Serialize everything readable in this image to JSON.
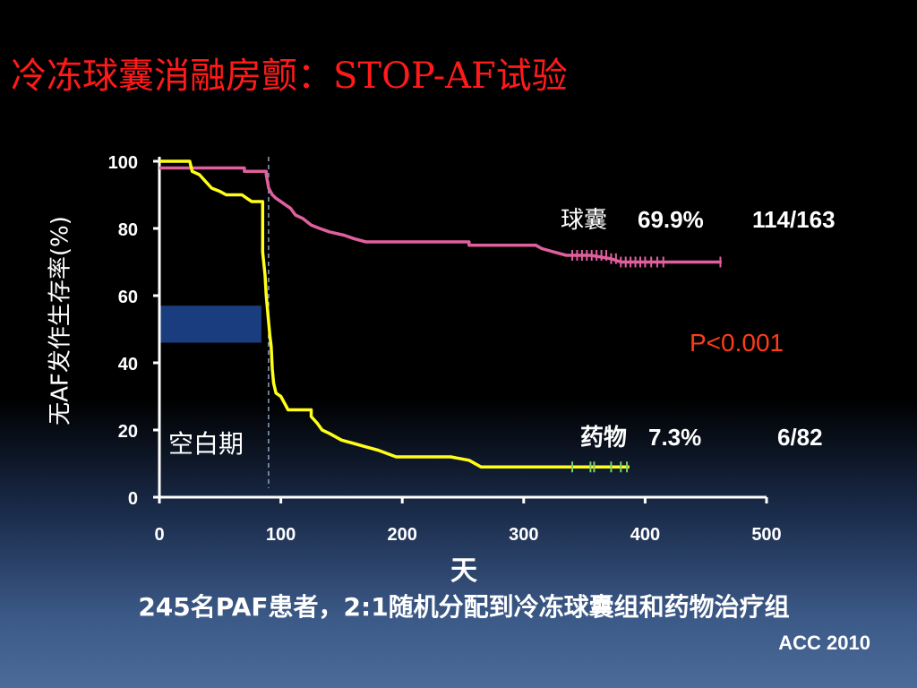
{
  "title": "冷冻球囊消融房颤：STOP-AF试验",
  "footnote": "245名PAF患者，2:1随机分配到冷冻球囊组和药物治疗组",
  "source": "ACC 2010",
  "colors": {
    "balloon": "#e0609e",
    "drug": "#ffff1a",
    "pvalue": "#ff3b1a",
    "blanking_fill": "#1a3d80",
    "axis": "#ffffff",
    "title": "#ff1a1a"
  },
  "chart_data": {
    "type": "line",
    "title": "",
    "xlabel": "天",
    "ylabel": "无AF发作生存率(%)",
    "xlim": [
      0,
      500
    ],
    "ylim": [
      0,
      100
    ],
    "x_ticks": [
      0,
      100,
      200,
      300,
      400,
      500
    ],
    "y_ticks": [
      0,
      20,
      40,
      60,
      80,
      100
    ],
    "grid": false,
    "blanking_period": {
      "label": "空白期",
      "x_end": 84,
      "y_range": [
        46,
        57
      ]
    },
    "p_value": "P<0.001",
    "series": [
      {
        "name": "球囊",
        "key": "balloon",
        "final_pct": "69.9%",
        "count": "114/163",
        "points": [
          [
            0,
            98
          ],
          [
            70,
            98
          ],
          [
            70,
            97
          ],
          [
            88,
            97
          ],
          [
            88,
            96
          ],
          [
            90,
            92
          ],
          [
            93,
            90
          ],
          [
            96,
            89
          ],
          [
            100,
            88
          ],
          [
            104,
            87
          ],
          [
            108,
            86
          ],
          [
            112,
            84
          ],
          [
            118,
            83
          ],
          [
            125,
            81
          ],
          [
            132,
            80
          ],
          [
            140,
            79
          ],
          [
            152,
            78
          ],
          [
            160,
            77
          ],
          [
            170,
            76
          ],
          [
            255,
            76
          ],
          [
            255,
            75
          ],
          [
            310,
            75
          ],
          [
            315,
            74
          ],
          [
            325,
            73
          ],
          [
            335,
            72
          ],
          [
            355,
            72
          ],
          [
            372,
            71
          ],
          [
            380,
            70
          ],
          [
            463,
            70
          ]
        ],
        "censor_x": [
          340,
          344,
          348,
          352,
          356,
          360,
          364,
          368,
          372,
          376,
          380,
          384,
          388,
          392,
          396,
          400,
          405,
          410,
          415,
          462
        ]
      },
      {
        "name": "药物",
        "key": "drug",
        "final_pct": "7.3%",
        "count": "6/82",
        "points": [
          [
            0,
            100
          ],
          [
            25,
            100
          ],
          [
            27,
            97
          ],
          [
            33,
            96
          ],
          [
            38,
            94
          ],
          [
            43,
            92
          ],
          [
            50,
            91
          ],
          [
            55,
            90
          ],
          [
            68,
            90
          ],
          [
            72,
            89
          ],
          [
            76,
            88
          ],
          [
            85,
            88
          ],
          [
            85,
            73
          ],
          [
            87,
            66
          ],
          [
            88,
            60
          ],
          [
            90,
            52
          ],
          [
            91,
            48
          ],
          [
            92,
            45
          ],
          [
            93,
            38
          ],
          [
            94,
            34
          ],
          [
            96,
            31
          ],
          [
            100,
            30
          ],
          [
            103,
            28
          ],
          [
            106,
            26
          ],
          [
            125,
            26
          ],
          [
            125,
            24
          ],
          [
            130,
            22
          ],
          [
            134,
            20
          ],
          [
            140,
            19
          ],
          [
            150,
            17
          ],
          [
            160,
            16
          ],
          [
            170,
            15
          ],
          [
            180,
            14
          ],
          [
            195,
            12
          ],
          [
            240,
            12
          ],
          [
            255,
            11
          ],
          [
            265,
            9
          ],
          [
            387,
            9
          ]
        ],
        "censor_x": [
          340,
          355,
          358,
          372,
          380,
          385
        ]
      }
    ]
  }
}
